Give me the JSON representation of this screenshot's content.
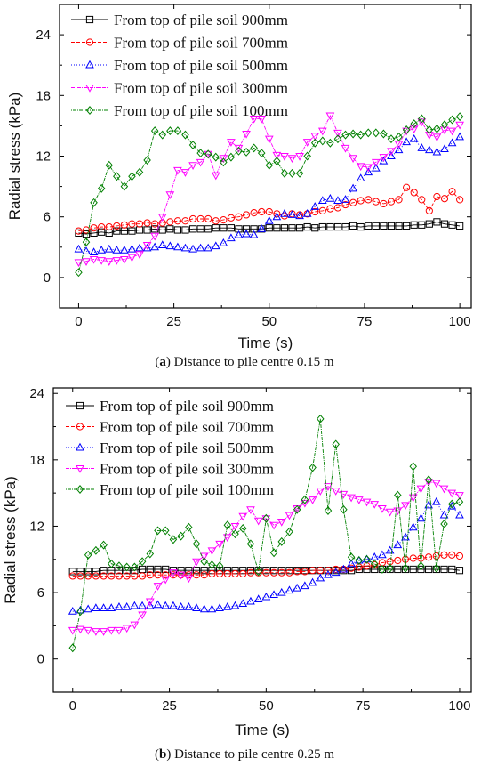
{
  "chart_data": [
    {
      "type": "line",
      "caption_letter": "a",
      "caption_text": " Distance to pile centre 0.15 m",
      "xlabel": "Time (s)",
      "ylabel": "Radial stress (kPa)",
      "xlim": [
        -5,
        103
      ],
      "ylim": [
        -3,
        27
      ],
      "xticks": [
        "0",
        "25",
        "50",
        "75",
        "100"
      ],
      "yticks": [
        "0",
        "6",
        "12",
        "18",
        "24"
      ],
      "legend_position": "top-left",
      "x": [
        0,
        2,
        4,
        6,
        8,
        10,
        12,
        14,
        16,
        18,
        20,
        22,
        24,
        26,
        28,
        30,
        32,
        34,
        36,
        38,
        40,
        42,
        44,
        46,
        48,
        50,
        52,
        54,
        56,
        58,
        60,
        62,
        64,
        66,
        68,
        70,
        72,
        74,
        76,
        78,
        80,
        82,
        84,
        86,
        88,
        90,
        92,
        94,
        96,
        98,
        100
      ],
      "series": [
        {
          "name": "From top of pile soil 900mm",
          "color": "#000000",
          "marker": "square",
          "dash": "",
          "values": [
            4.4,
            4.3,
            4.4,
            4.5,
            4.4,
            4.6,
            4.6,
            4.6,
            4.7,
            4.7,
            4.8,
            4.7,
            4.8,
            4.7,
            4.7,
            4.8,
            4.8,
            4.8,
            4.9,
            4.9,
            4.9,
            4.8,
            4.8,
            4.8,
            4.8,
            4.9,
            4.9,
            4.9,
            4.9,
            4.9,
            5.0,
            4.9,
            5.0,
            5.0,
            5.0,
            5.0,
            5.1,
            5.0,
            5.1,
            5.1,
            5.1,
            5.1,
            5.1,
            5.1,
            5.2,
            5.2,
            5.3,
            5.5,
            5.3,
            5.2,
            5.1
          ]
        },
        {
          "name": "From top of pile soil 700mm",
          "color": "#ff0000",
          "marker": "circle",
          "dash": "4,2",
          "values": [
            4.6,
            4.7,
            4.9,
            5.0,
            5.0,
            5.1,
            5.2,
            5.3,
            5.3,
            5.4,
            5.3,
            5.4,
            5.5,
            5.6,
            5.6,
            5.8,
            5.8,
            5.8,
            5.6,
            5.7,
            5.9,
            6.0,
            6.2,
            6.4,
            6.5,
            6.5,
            6.3,
            6.1,
            6.3,
            6.2,
            6.3,
            6.5,
            6.6,
            6.8,
            6.9,
            7.2,
            7.4,
            7.6,
            7.7,
            7.5,
            7.3,
            7.5,
            7.7,
            8.9,
            8.4,
            7.7,
            6.6,
            8.0,
            7.8,
            8.5,
            7.7
          ]
        },
        {
          "name": "From top of pile soil 500mm",
          "color": "#0000ff",
          "marker": "triangle-up",
          "dash": "1,2",
          "values": [
            2.8,
            2.6,
            2.5,
            2.7,
            2.8,
            2.7,
            2.7,
            2.8,
            2.9,
            2.9,
            3.0,
            3.2,
            3.1,
            3.0,
            2.9,
            2.8,
            2.9,
            2.9,
            3.1,
            3.4,
            3.9,
            4.2,
            4.3,
            4.2,
            4.8,
            5.6,
            6.0,
            6.3,
            6.2,
            6.1,
            6.3,
            7.0,
            7.6,
            7.8,
            7.6,
            7.7,
            8.8,
            9.8,
            10.4,
            10.8,
            11.5,
            12.0,
            12.6,
            13.4,
            13.7,
            12.8,
            12.6,
            12.4,
            12.7,
            13.3,
            13.9
          ]
        },
        {
          "name": "From top of pile soil 300mm",
          "color": "#ff00ff",
          "marker": "triangle-down",
          "dash": "4,1,1,1",
          "values": [
            1.5,
            1.6,
            1.8,
            1.7,
            1.6,
            1.7,
            1.8,
            2.0,
            2.3,
            3.2,
            4.1,
            6.0,
            8.2,
            10.6,
            10.4,
            11.1,
            11.4,
            12.2,
            10.1,
            11.8,
            13.4,
            12.8,
            14.2,
            15.7,
            15.7,
            13.7,
            12.1,
            12.0,
            11.8,
            12.0,
            13.4,
            14.0,
            14.5,
            16.0,
            14.3,
            12.8,
            11.8,
            11.0,
            10.9,
            11.4,
            11.9,
            12.5,
            13.2,
            14.5,
            14.7,
            15.4,
            14.1,
            13.9,
            14.6,
            14.5,
            15.1
          ]
        },
        {
          "name": "From top of pile soil 100mm",
          "color": "#008000",
          "marker": "diamond",
          "dash": "1,1,4,1",
          "values": [
            0.5,
            3.5,
            7.4,
            8.8,
            11.1,
            10.0,
            9.0,
            10.0,
            10.4,
            11.6,
            14.5,
            14.1,
            14.5,
            14.5,
            14.1,
            13.1,
            12.3,
            12.2,
            11.9,
            11.4,
            11.9,
            12.5,
            12.4,
            12.8,
            12.3,
            11.1,
            11.5,
            10.3,
            10.3,
            10.3,
            12.0,
            13.3,
            13.5,
            13.3,
            13.7,
            14.1,
            14.2,
            14.1,
            14.3,
            14.3,
            14.2,
            13.7,
            13.9,
            14.6,
            15.2,
            15.7,
            14.6,
            14.7,
            15.1,
            15.6,
            15.9
          ]
        }
      ]
    },
    {
      "type": "line",
      "caption_letter": "b",
      "caption_text": " Distance to pile centre 0.25 m",
      "xlabel": "Time (s)",
      "ylabel": "Radial stress (kPa)",
      "xlim": [
        -5,
        103
      ],
      "ylim": [
        -3,
        24.5
      ],
      "xticks": [
        "0",
        "25",
        "50",
        "75",
        "100"
      ],
      "yticks": [
        "0",
        "6",
        "12",
        "18",
        "24"
      ],
      "legend_position": "top-left",
      "x": [
        0,
        2,
        4,
        6,
        8,
        10,
        12,
        14,
        16,
        18,
        20,
        22,
        24,
        26,
        28,
        30,
        32,
        34,
        36,
        38,
        40,
        42,
        44,
        46,
        48,
        50,
        52,
        54,
        56,
        58,
        60,
        62,
        64,
        66,
        68,
        70,
        72,
        74,
        76,
        78,
        80,
        82,
        84,
        86,
        88,
        90,
        92,
        94,
        96,
        98,
        100
      ],
      "series": [
        {
          "name": "From top of pile soil 900mm",
          "color": "#000000",
          "marker": "square",
          "dash": "",
          "values": [
            7.9,
            7.9,
            7.9,
            7.9,
            8.0,
            8.0,
            8.0,
            8.0,
            8.0,
            8.1,
            8.1,
            8.1,
            8.1,
            8.0,
            8.0,
            8.0,
            8.0,
            8.0,
            8.0,
            8.0,
            8.0,
            8.0,
            8.0,
            8.0,
            8.0,
            8.0,
            8.0,
            8.0,
            8.0,
            8.0,
            8.0,
            8.0,
            8.0,
            8.0,
            8.0,
            8.0,
            8.0,
            8.1,
            8.1,
            8.1,
            8.1,
            8.1,
            8.1,
            8.1,
            8.1,
            8.1,
            8.1,
            8.1,
            8.1,
            8.1,
            8.0
          ]
        },
        {
          "name": "From top of pile soil 700mm",
          "color": "#ff0000",
          "marker": "circle",
          "dash": "4,2",
          "values": [
            7.5,
            7.5,
            7.5,
            7.5,
            7.5,
            7.5,
            7.5,
            7.5,
            7.5,
            7.5,
            7.6,
            7.6,
            7.6,
            7.6,
            7.6,
            7.6,
            7.6,
            7.6,
            7.7,
            7.7,
            7.7,
            7.7,
            7.7,
            7.8,
            7.8,
            7.8,
            7.8,
            7.8,
            7.8,
            7.9,
            7.9,
            8.0,
            8.0,
            8.0,
            8.1,
            8.1,
            8.2,
            8.3,
            8.4,
            8.5,
            8.7,
            8.8,
            8.9,
            9.0,
            9.1,
            9.1,
            9.2,
            9.3,
            9.4,
            9.4,
            9.3
          ]
        },
        {
          "name": "From top of pile soil 500mm",
          "color": "#0000ff",
          "marker": "triangle-up",
          "dash": "1,2",
          "values": [
            4.3,
            4.4,
            4.5,
            4.6,
            4.6,
            4.6,
            4.7,
            4.7,
            4.8,
            4.8,
            4.8,
            4.9,
            4.8,
            4.8,
            4.7,
            4.7,
            4.6,
            4.5,
            4.5,
            4.6,
            4.7,
            4.8,
            5.0,
            5.2,
            5.4,
            5.6,
            5.8,
            6.0,
            6.2,
            6.4,
            6.6,
            6.9,
            7.3,
            7.6,
            7.8,
            8.1,
            8.6,
            8.9,
            9.0,
            9.2,
            9.4,
            9.8,
            10.3,
            11.0,
            11.9,
            12.7,
            13.9,
            14.2,
            13.0,
            13.8,
            13.0
          ]
        },
        {
          "name": "From top of pile soil 300mm",
          "color": "#ff00ff",
          "marker": "triangle-down",
          "dash": "4,1,1,1",
          "values": [
            2.6,
            2.7,
            2.6,
            2.5,
            2.5,
            2.6,
            2.6,
            2.8,
            3.1,
            4.0,
            5.2,
            6.6,
            7.2,
            7.8,
            7.6,
            7.3,
            8.8,
            9.3,
            9.8,
            10.4,
            11.0,
            12.0,
            12.9,
            13.5,
            12.5,
            12.7,
            12.1,
            12.4,
            13.0,
            13.6,
            14.1,
            14.4,
            15.2,
            15.6,
            15.2,
            14.9,
            14.6,
            14.4,
            14.2,
            14.0,
            13.6,
            13.3,
            13.4,
            13.9,
            14.6,
            15.4,
            16.0,
            15.9,
            15.4,
            15.0,
            14.8
          ]
        },
        {
          "name": "From top of pile soil 100mm",
          "color": "#008000",
          "marker": "diamond",
          "dash": "1,1,4,1",
          "values": [
            1.0,
            4.3,
            9.4,
            9.8,
            10.3,
            8.6,
            8.4,
            8.3,
            8.3,
            8.8,
            9.5,
            11.6,
            11.6,
            10.8,
            11.1,
            11.9,
            10.4,
            8.8,
            8.5,
            8.4,
            12.1,
            11.3,
            11.8,
            10.4,
            7.9,
            12.7,
            9.6,
            10.6,
            11.5,
            13.5,
            14.4,
            17.3,
            21.7,
            13.4,
            19.4,
            13.5,
            9.2,
            8.9,
            9.0,
            8.6,
            8.1,
            8.2,
            14.8,
            8.2,
            17.4,
            8.4,
            16.2,
            8.2,
            12.2,
            14.0,
            14.2
          ]
        }
      ]
    }
  ]
}
